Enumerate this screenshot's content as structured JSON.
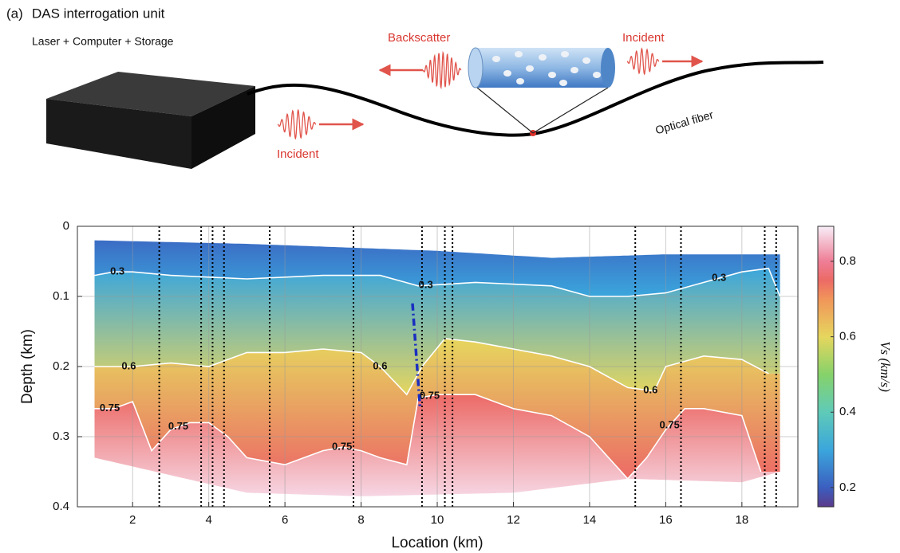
{
  "panel_label": "(a)",
  "diagram": {
    "title": "DAS interrogation unit",
    "subtitle": "Laser + Computer + Storage",
    "backscatter": "Backscatter",
    "incident_right": "Incident",
    "incident_left": "Incident",
    "fiber": "Optical fiber"
  },
  "chart_data": {
    "type": "contourf",
    "xlabel": "Location (km)",
    "ylabel": "Depth (km)",
    "xlim": [
      0.55,
      19.47
    ],
    "ylim": [
      0,
      0.4
    ],
    "y_reversed": true,
    "xticks": [
      2,
      4,
      6,
      8,
      10,
      12,
      14,
      16,
      18
    ],
    "yticks": [
      0,
      0.1,
      0.2,
      0.3,
      0.4
    ],
    "grid": true,
    "colorbar_label": "Vs (km/s)",
    "clim": [
      0.149,
      0.893
    ],
    "cticks": [
      0.2,
      0.4,
      0.6,
      0.8
    ],
    "colormap": {
      "values": [
        0.149,
        0.2,
        0.3,
        0.4,
        0.5,
        0.6,
        0.7,
        0.75,
        0.8,
        0.893
      ],
      "colors": [
        "#5a3a8a",
        "#3b5fc0",
        "#3ba6dc",
        "#5fcab8",
        "#86d26a",
        "#e6d65e",
        "#f1955a",
        "#ec6a66",
        "#ee7d96",
        "#f8eef8"
      ]
    },
    "top_boundary": {
      "x": [
        1,
        5,
        10,
        13,
        16,
        19
      ],
      "y": [
        0.02,
        0.025,
        0.035,
        0.045,
        0.04,
        0.04
      ]
    },
    "bottom_boundary": {
      "x": [
        1,
        3,
        5,
        8,
        12,
        15,
        18,
        19
      ],
      "y": [
        0.33,
        0.355,
        0.38,
        0.385,
        0.38,
        0.36,
        0.365,
        0.35
      ]
    },
    "contours": [
      {
        "level": 0.3,
        "x": [
          1,
          1.5,
          2,
          3,
          5,
          7,
          8.5,
          9.5,
          11,
          13,
          14,
          15,
          16,
          17,
          18,
          18.7,
          19
        ],
        "y": [
          0.07,
          0.065,
          0.065,
          0.07,
          0.075,
          0.07,
          0.07,
          0.085,
          0.08,
          0.085,
          0.1,
          0.1,
          0.095,
          0.08,
          0.065,
          0.06,
          0.1
        ],
        "label_x": [
          1.6,
          9.7,
          17.4
        ]
      },
      {
        "level": 0.6,
        "x": [
          1,
          2,
          3,
          4,
          5,
          6,
          7,
          8,
          8.5,
          9.2,
          9.6,
          10.2,
          11,
          12,
          13,
          14,
          15,
          15.7,
          16,
          17,
          18,
          18.7
        ],
        "y": [
          0.2,
          0.2,
          0.195,
          0.2,
          0.18,
          0.18,
          0.175,
          0.18,
          0.2,
          0.24,
          0.2,
          0.16,
          0.165,
          0.175,
          0.185,
          0.2,
          0.23,
          0.235,
          0.2,
          0.185,
          0.19,
          0.21
        ],
        "label_x": [
          1.9,
          8.5,
          15.6
        ]
      },
      {
        "level": 0.75,
        "x": [
          1,
          1.5,
          2,
          2.5,
          3,
          3.5,
          4,
          4.5,
          5,
          6,
          7,
          7.5,
          8,
          8.5,
          9.2,
          9.5,
          10,
          11,
          12,
          13,
          14,
          15,
          15.5,
          16,
          16.5,
          17,
          18,
          18.5
        ],
        "y": [
          0.26,
          0.26,
          0.25,
          0.32,
          0.29,
          0.28,
          0.28,
          0.3,
          0.33,
          0.34,
          0.32,
          0.315,
          0.32,
          0.33,
          0.34,
          0.245,
          0.24,
          0.24,
          0.26,
          0.27,
          0.3,
          0.36,
          0.33,
          0.29,
          0.26,
          0.26,
          0.27,
          0.35
        ],
        "label_x": [
          1.4,
          3.2,
          7.5,
          9.8,
          16.1
        ]
      }
    ],
    "vertical_lines": [
      2.7,
      3.8,
      4.1,
      4.4,
      5.6,
      7.8,
      9.6,
      10.2,
      10.4,
      15.2,
      16.4,
      18.6,
      18.9
    ],
    "dashed_line": {
      "x": [
        9.35,
        9.55
      ],
      "y": [
        0.11,
        0.26
      ],
      "color": "#1a2fc0"
    }
  }
}
